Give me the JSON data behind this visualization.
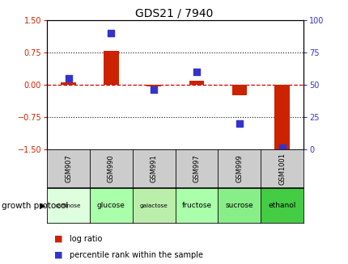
{
  "title": "GDS21 / 7940",
  "samples": [
    "GSM907",
    "GSM990",
    "GSM991",
    "GSM997",
    "GSM999",
    "GSM1001"
  ],
  "protocols": [
    "raffinose",
    "glucose",
    "galactose",
    "fructose",
    "sucrose",
    "ethanol"
  ],
  "log_ratio": [
    0.05,
    0.78,
    -0.05,
    0.08,
    -0.25,
    -1.5
  ],
  "percentile_rank": [
    55,
    90,
    46,
    60,
    20,
    1
  ],
  "ylim_left": [
    -1.5,
    1.5
  ],
  "ylim_right": [
    0,
    100
  ],
  "yticks_left": [
    -1.5,
    -0.75,
    0,
    0.75,
    1.5
  ],
  "yticks_right": [
    0,
    25,
    50,
    75,
    100
  ],
  "hlines_dotted": [
    -0.75,
    0.75
  ],
  "hline_zero": 0,
  "bar_color": "#cc2200",
  "dot_color": "#3333cc",
  "bar_width": 0.35,
  "dot_size": 40,
  "protocol_colors": [
    "#ddffdd",
    "#aaffaa",
    "#bbeeaa",
    "#aaffaa",
    "#88ee88",
    "#44cc44"
  ],
  "gsm_bg_color": "#cccccc",
  "zero_line_color": "#cc0000",
  "dotted_line_color": "#111111",
  "legend_red_label": "log ratio",
  "legend_blue_label": "percentile rank within the sample",
  "growth_protocol_label": "growth protocol",
  "ylabel_left_color": "#cc2200",
  "ylabel_right_color": "#3333cc",
  "title_fontsize": 10,
  "tick_fontsize": 7,
  "gsm_fontsize": 6,
  "proto_fontsize": 6.5,
  "legend_fontsize": 7,
  "gp_fontsize": 7.5
}
